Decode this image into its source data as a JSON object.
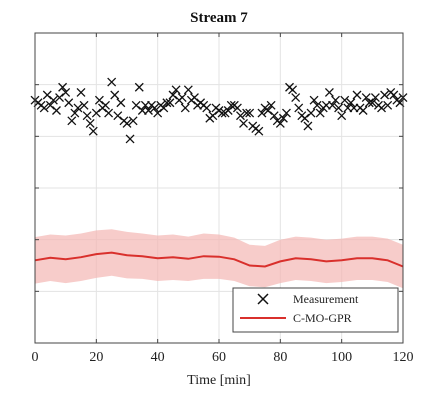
{
  "chart_data": {
    "type": "scatter",
    "title": "Stream 7",
    "xlabel": "Time [min]",
    "ylabel": "",
    "xlim": [
      0,
      120
    ],
    "ylim": [
      0,
      6
    ],
    "x_ticks": [
      0,
      20,
      40,
      60,
      80,
      100,
      120
    ],
    "y_ticks": [
      1,
      2,
      3,
      4,
      5
    ],
    "y_tick_labels_visible": false,
    "grid": true,
    "legend": {
      "placement": "bottom-right",
      "entries": [
        "Measurement",
        "C-MO-GPR"
      ]
    },
    "colors": {
      "measurement": "#111111",
      "model_line": "#d9302c",
      "model_band": "#f4b6b3"
    },
    "series": [
      {
        "name": "Measurement",
        "type": "scatter",
        "marker": "x",
        "x": [
          0,
          1,
          2,
          3,
          4,
          5,
          6,
          7,
          8,
          9,
          10,
          11,
          12,
          13,
          14,
          15,
          16,
          17,
          18,
          19,
          20,
          21,
          22,
          23,
          24,
          25,
          26,
          27,
          28,
          29,
          30,
          31,
          32,
          33,
          34,
          35,
          36,
          37,
          38,
          39,
          40,
          41,
          42,
          43,
          44,
          45,
          46,
          47,
          48,
          49,
          50,
          51,
          52,
          53,
          54,
          55,
          56,
          57,
          58,
          59,
          60,
          61,
          62,
          63,
          64,
          65,
          66,
          67,
          68,
          69,
          70,
          71,
          72,
          73,
          74,
          75,
          76,
          77,
          78,
          79,
          80,
          81,
          82,
          83,
          84,
          85,
          86,
          87,
          88,
          89,
          90,
          91,
          92,
          93,
          94,
          95,
          96,
          97,
          98,
          99,
          100,
          101,
          102,
          103,
          104,
          105,
          106,
          107,
          108,
          109,
          110,
          111,
          112,
          113,
          114,
          115,
          116,
          117,
          118,
          119,
          120
        ],
        "y": [
          4.7,
          4.65,
          4.6,
          4.55,
          4.8,
          4.6,
          4.7,
          4.5,
          4.75,
          4.95,
          4.85,
          4.65,
          4.3,
          4.45,
          4.55,
          4.85,
          4.6,
          4.4,
          4.25,
          4.1,
          4.45,
          4.7,
          4.55,
          4.6,
          4.45,
          5.05,
          4.8,
          4.4,
          4.65,
          4.3,
          4.25,
          3.95,
          4.3,
          4.6,
          4.95,
          4.5,
          4.6,
          4.5,
          4.6,
          4.55,
          4.45,
          4.6,
          4.55,
          4.65,
          4.65,
          4.8,
          4.9,
          4.7,
          4.75,
          4.55,
          4.9,
          4.7,
          4.75,
          4.6,
          4.65,
          4.6,
          4.55,
          4.35,
          4.4,
          4.55,
          4.5,
          4.45,
          4.45,
          4.5,
          4.6,
          4.6,
          4.55,
          4.4,
          4.25,
          4.45,
          4.45,
          4.2,
          4.15,
          4.1,
          4.45,
          4.55,
          4.5,
          4.6,
          4.4,
          4.3,
          4.25,
          4.35,
          4.45,
          4.95,
          4.9,
          4.75,
          4.55,
          4.4,
          4.35,
          4.2,
          4.45,
          4.7,
          4.6,
          4.45,
          4.55,
          4.6,
          4.85,
          4.6,
          4.7,
          4.55,
          4.4,
          4.7,
          4.55,
          4.65,
          4.55,
          4.8,
          4.55,
          4.5,
          4.75,
          4.65,
          4.65,
          4.75,
          4.6,
          4.55,
          4.8,
          4.6,
          4.85,
          4.8,
          4.7,
          4.65,
          4.75
        ]
      },
      {
        "name": "C-MO-GPR",
        "type": "line",
        "x": [
          0,
          5,
          10,
          15,
          20,
          25,
          30,
          35,
          40,
          45,
          50,
          55,
          60,
          65,
          70,
          75,
          80,
          85,
          90,
          95,
          100,
          105,
          110,
          115,
          120
        ],
        "y": [
          1.6,
          1.65,
          1.62,
          1.66,
          1.72,
          1.75,
          1.7,
          1.68,
          1.64,
          1.66,
          1.63,
          1.68,
          1.67,
          1.62,
          1.5,
          1.48,
          1.58,
          1.64,
          1.62,
          1.58,
          1.6,
          1.64,
          1.64,
          1.6,
          1.48
        ],
        "band_upper": [
          2.05,
          2.1,
          2.08,
          2.12,
          2.18,
          2.2,
          2.15,
          2.12,
          2.08,
          2.1,
          2.06,
          2.12,
          2.1,
          2.04,
          1.9,
          1.88,
          2.0,
          2.06,
          2.04,
          2.0,
          2.02,
          2.06,
          2.06,
          2.02,
          1.9
        ],
        "band_lower": [
          1.15,
          1.2,
          1.16,
          1.2,
          1.26,
          1.3,
          1.25,
          1.24,
          1.2,
          1.22,
          1.2,
          1.24,
          1.24,
          1.2,
          1.1,
          1.08,
          1.16,
          1.22,
          1.2,
          1.16,
          1.18,
          1.22,
          1.22,
          1.18,
          1.06
        ]
      }
    ]
  }
}
